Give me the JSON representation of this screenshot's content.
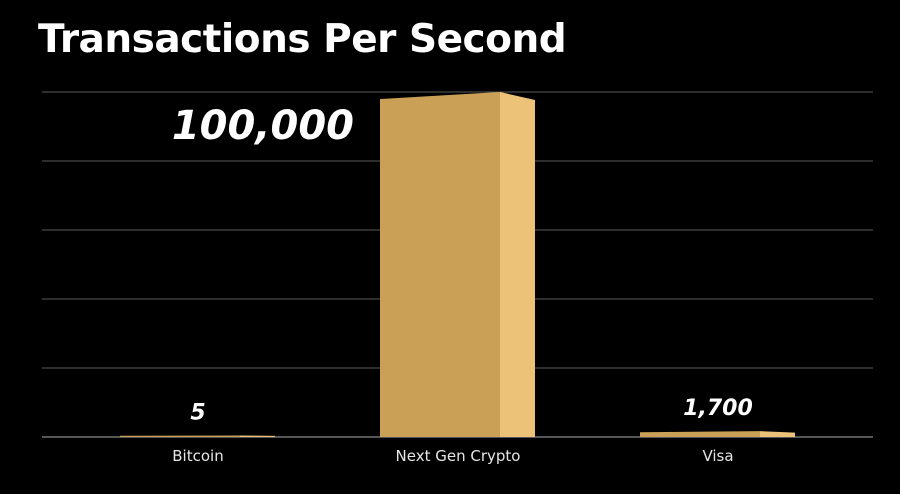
{
  "chart_data": {
    "type": "bar",
    "title": "Transactions Per Second",
    "categories": [
      "Bitcoin",
      "Next Gen Crypto",
      "Visa"
    ],
    "values": [
      5,
      100000,
      1700
    ],
    "data_labels": [
      "5",
      "100,000",
      "1,700"
    ],
    "xlabel": "",
    "ylabel": "",
    "ylim": [
      0,
      100000
    ],
    "grid": true,
    "legend": "none",
    "style": "3d",
    "colors": {
      "bar_front": "#C9A055",
      "bar_side": "#EBC278",
      "bar_top": "#E6BD72",
      "grid": "#5a5a5a",
      "background": "#000000",
      "text": "#ffffff"
    }
  }
}
